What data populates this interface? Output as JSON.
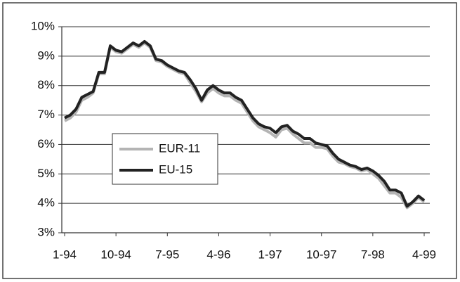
{
  "chart_data": {
    "type": "line",
    "categories": [
      "1-94",
      null,
      null,
      null,
      null,
      null,
      null,
      null,
      null,
      "10-94",
      null,
      null,
      null,
      null,
      null,
      null,
      null,
      null,
      "7-95",
      null,
      null,
      null,
      null,
      null,
      null,
      null,
      null,
      "4-96",
      null,
      null,
      null,
      null,
      null,
      null,
      null,
      null,
      "1-97",
      null,
      null,
      null,
      null,
      null,
      null,
      null,
      null,
      "10-97",
      null,
      null,
      null,
      null,
      null,
      null,
      null,
      null,
      "7-98",
      null,
      null,
      null,
      null,
      null,
      null,
      null,
      null,
      "4-99"
    ],
    "series": [
      {
        "name": "EUR-11",
        "color": "#b4b4b4",
        "values": [
          6.8,
          6.9,
          7.1,
          7.5,
          7.6,
          7.75,
          8.4,
          8.4,
          9.3,
          9.15,
          9.1,
          9.25,
          9.4,
          9.3,
          9.45,
          9.3,
          8.85,
          8.8,
          8.65,
          8.55,
          8.45,
          8.4,
          8.1,
          7.8,
          7.45,
          7.75,
          7.9,
          7.75,
          7.65,
          7.65,
          7.5,
          7.4,
          7.1,
          6.8,
          6.6,
          6.5,
          6.4,
          6.25,
          6.5,
          6.55,
          6.35,
          6.2,
          6.05,
          6.05,
          5.9,
          5.9,
          5.85,
          5.6,
          5.4,
          5.35,
          5.25,
          5.2,
          5.1,
          5.15,
          5.0,
          4.85,
          4.6,
          4.35,
          4.35,
          4.2,
          3.85,
          4.0,
          4.2,
          4.05
        ]
      },
      {
        "name": "EU-15",
        "color": "#222222",
        "values": [
          6.9,
          7.0,
          7.2,
          7.6,
          7.7,
          7.8,
          8.45,
          8.45,
          9.35,
          9.2,
          9.15,
          9.3,
          9.45,
          9.35,
          9.5,
          9.35,
          8.9,
          8.85,
          8.7,
          8.6,
          8.5,
          8.45,
          8.2,
          7.9,
          7.5,
          7.85,
          8.0,
          7.85,
          7.75,
          7.75,
          7.6,
          7.5,
          7.2,
          6.9,
          6.7,
          6.6,
          6.55,
          6.4,
          6.6,
          6.65,
          6.45,
          6.35,
          6.2,
          6.2,
          6.05,
          6.0,
          5.95,
          5.7,
          5.5,
          5.4,
          5.3,
          5.25,
          5.15,
          5.2,
          5.1,
          4.95,
          4.75,
          4.45,
          4.45,
          4.35,
          3.9,
          4.05,
          4.25,
          4.1
        ]
      }
    ],
    "ylim": [
      3,
      10
    ],
    "yticks": [
      {
        "value": 3,
        "label": "3%"
      },
      {
        "value": 4,
        "label": "4%"
      },
      {
        "value": 5,
        "label": "5%"
      },
      {
        "value": 6,
        "label": "6%"
      },
      {
        "value": 7,
        "label": "7%"
      },
      {
        "value": 8,
        "label": "8%"
      },
      {
        "value": 9,
        "label": "9%"
      },
      {
        "value": 10,
        "label": "10%"
      }
    ],
    "grid": true
  }
}
